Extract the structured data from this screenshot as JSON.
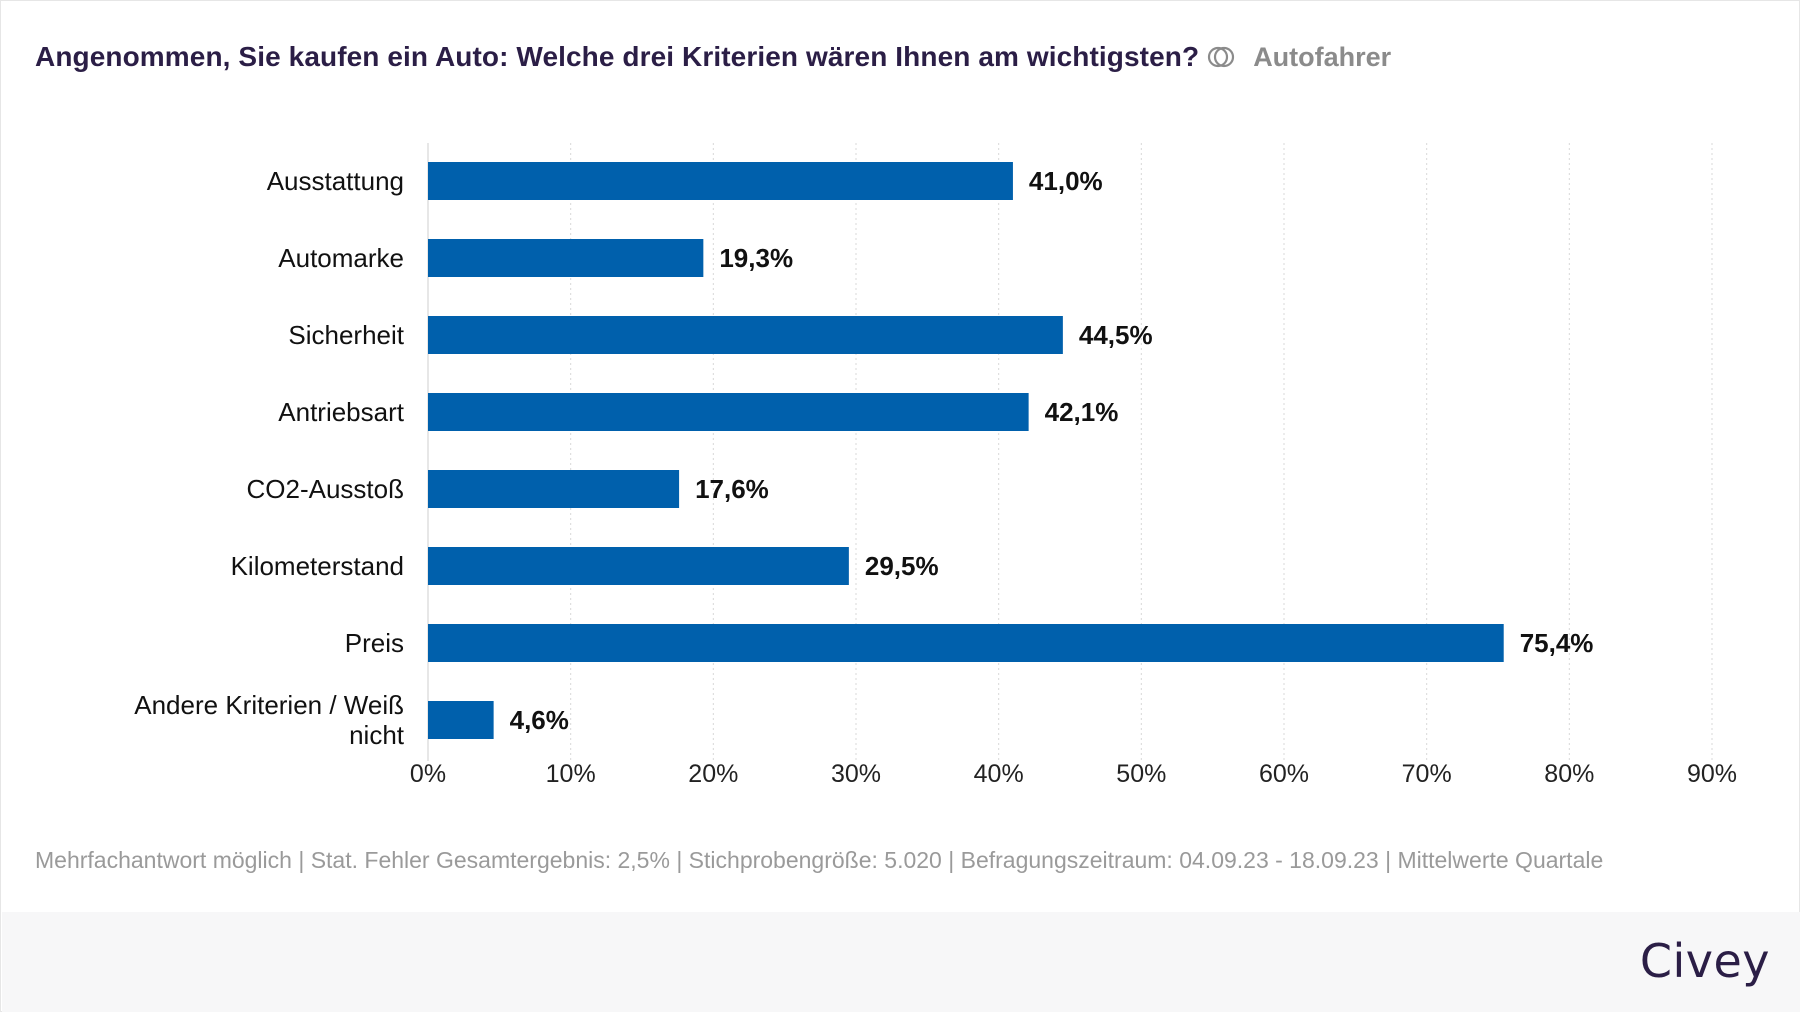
{
  "header": {
    "title": "Angenommen, Sie kaufen ein Auto: Welche drei Kriterien wären Ihnen am wichtigsten?",
    "filter_label": "Autofahrer",
    "filter_icon": "filter-circles-icon"
  },
  "chart_data": {
    "type": "bar",
    "orientation": "horizontal",
    "categories": [
      "Ausstattung",
      "Automarke",
      "Sicherheit",
      "Antriebsart",
      "CO2-Ausstoß",
      "Kilometerstand",
      "Preis",
      "Andere Kriterien / Weiß nicht"
    ],
    "values": [
      41.0,
      19.3,
      44.5,
      42.1,
      17.6,
      29.5,
      75.4,
      4.6
    ],
    "value_labels": [
      "41,0%",
      "19,3%",
      "44,5%",
      "42,1%",
      "17,6%",
      "29,5%",
      "75,4%",
      "4,6%"
    ],
    "xlim": [
      0,
      90
    ],
    "xticks": [
      0,
      10,
      20,
      30,
      40,
      50,
      60,
      70,
      80,
      90
    ],
    "xtick_labels": [
      "0%",
      "10%",
      "20%",
      "30%",
      "40%",
      "50%",
      "60%",
      "70%",
      "80%",
      "90%"
    ],
    "grid": "vertical-dotted",
    "bar_color": "#0060ac",
    "title": "Angenommen, Sie kaufen ein Auto: Welche drei Kriterien wären Ihnen am wichtigsten?",
    "xlabel": "",
    "ylabel": ""
  },
  "footnote": "Mehrfachantwort möglich | Stat. Fehler Gesamtergebnis: 2,5% | Stichprobengröße: 5.020 | Befragungszeitraum: 04.09.23 - 18.09.23 | Mittelwerte Quartale",
  "brand": "Civey",
  "colors": {
    "title": "#2b1e46",
    "bar": "#0060ac",
    "muted": "#9a9a9a",
    "footer_bg": "#f7f7f8"
  }
}
